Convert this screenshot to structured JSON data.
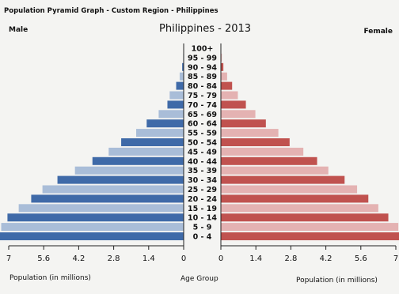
{
  "header": {
    "title": "Population Pyramid Graph - Custom Region - Philippines",
    "male_label": "Male",
    "female_label": "Female"
  },
  "chart_data": {
    "type": "bar",
    "orientation": "horizontal-pyramid",
    "title": "Philippines - 2013",
    "xlabel_left": "Population (in millions)",
    "xlabel_center": "Age Group",
    "xlabel_right": "Population (in millions)",
    "xlim": [
      0,
      7
    ],
    "ticks_left": [
      "7",
      "5.6",
      "4.2",
      "2.8",
      "1.4",
      "0"
    ],
    "ticks_right": [
      "0",
      "1.4",
      "2.8",
      "4.2",
      "5.6",
      "7"
    ],
    "tick_values": [
      0,
      1.4,
      2.8,
      4.2,
      5.6,
      7
    ],
    "categories": [
      "100+",
      "95 - 99",
      "90 - 94",
      "85 - 89",
      "80 - 84",
      "75 - 79",
      "70 - 74",
      "65 - 69",
      "60 - 64",
      "55 - 59",
      "50 - 54",
      "45 - 49",
      "40 - 44",
      "35 - 39",
      "30 - 34",
      "25 - 29",
      "20 - 24",
      "15 - 19",
      "10 - 14",
      "5 - 9",
      "0 - 4"
    ],
    "series": [
      {
        "name": "Male",
        "color_dark": "#3f6aa8",
        "color_light": "#a9bdd8",
        "values": [
          0.01,
          0.02,
          0.06,
          0.16,
          0.3,
          0.56,
          0.65,
          1.0,
          1.48,
          1.9,
          2.5,
          3.0,
          3.65,
          4.35,
          5.05,
          5.65,
          6.1,
          6.6,
          7.05,
          7.3,
          7.6
        ]
      },
      {
        "name": "Female",
        "color_dark": "#c0524f",
        "color_light": "#e4b2b2",
        "values": [
          0.01,
          0.04,
          0.1,
          0.25,
          0.45,
          0.68,
          1.0,
          1.38,
          1.8,
          2.3,
          2.75,
          3.3,
          3.85,
          4.3,
          4.95,
          5.45,
          5.9,
          6.3,
          6.7,
          7.1,
          7.4
        ]
      }
    ]
  }
}
